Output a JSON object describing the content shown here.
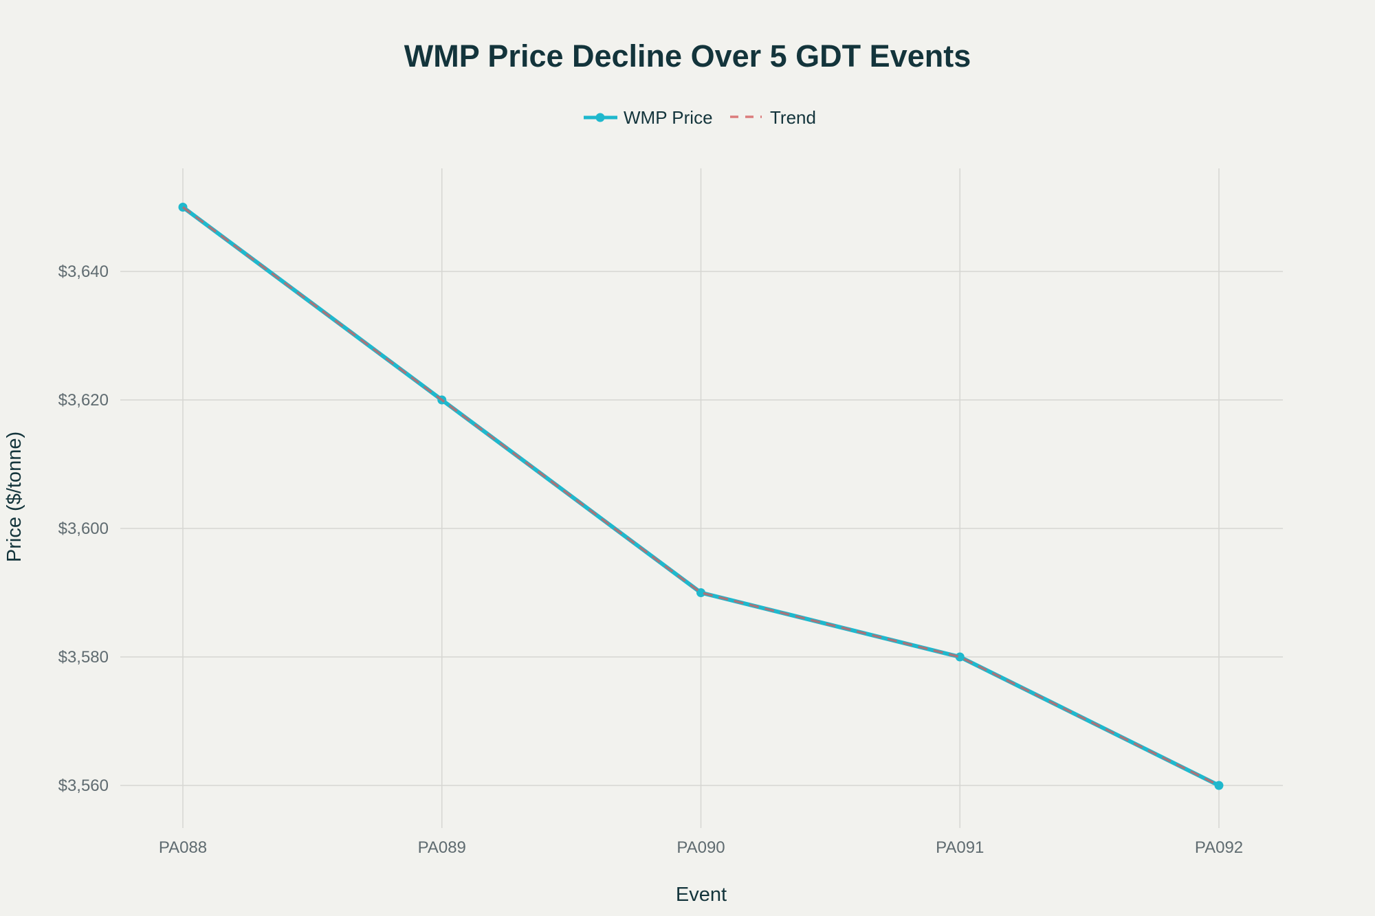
{
  "chart_data": {
    "type": "line",
    "title": "WMP Price Decline Over 5 GDT Events",
    "xlabel": "Event",
    "ylabel": "Price ($/tonne)",
    "categories": [
      "PA088",
      "PA089",
      "PA090",
      "PA091",
      "PA092"
    ],
    "ylim": [
      3554,
      3656
    ],
    "yticks": [
      3560,
      3580,
      3600,
      3620,
      3640
    ],
    "ytick_labels": [
      "$3,560",
      "$3,580",
      "$3,600",
      "$3,620",
      "$3,640"
    ],
    "grid": true,
    "legend_position": "top-center",
    "series": [
      {
        "name": "WMP Price",
        "values": [
          3650,
          3620,
          3590,
          3580,
          3560
        ],
        "color": "#1fb8cd",
        "style": "solid",
        "markers": true
      },
      {
        "name": "Trend",
        "values": [
          3650,
          3620,
          3590,
          3580,
          3560
        ],
        "color": "#db7c7c",
        "style": "dashed",
        "markers": false
      }
    ]
  }
}
